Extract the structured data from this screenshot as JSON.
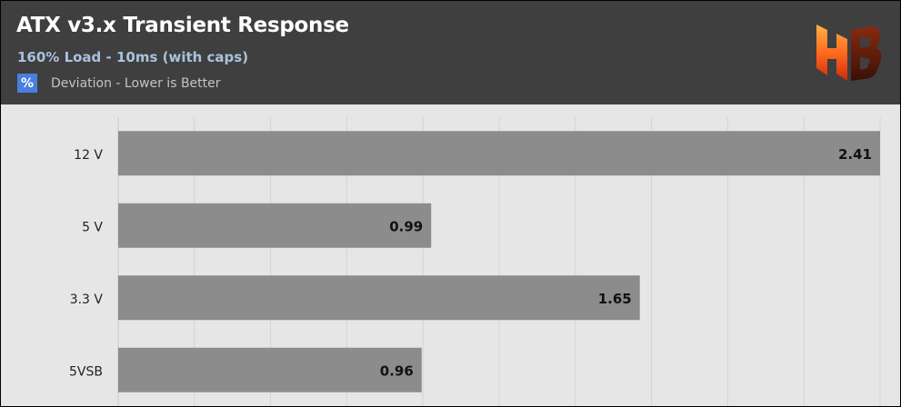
{
  "chart_data": {
    "type": "bar",
    "orientation": "horizontal",
    "title": "ATX v3.x Transient Response",
    "subtitle": "160% Load - 10ms (with caps)",
    "legend": [
      {
        "symbol": "%",
        "label": "Deviation - Lower is Better"
      }
    ],
    "categories": [
      "12 V",
      "5 V",
      "3.3 V",
      "5VSB"
    ],
    "values": [
      2.41,
      0.99,
      1.65,
      0.96
    ],
    "xlim": [
      0,
      2.41
    ],
    "grid": true,
    "bar_color": "#8c8c8c",
    "logo_text": "HB"
  },
  "colors": {
    "header_bg": "#3f3f3f",
    "plot_bg": "#e6e6e6",
    "subtitle": "#a9c2de",
    "legend_swatch": "#4a7fe0"
  }
}
